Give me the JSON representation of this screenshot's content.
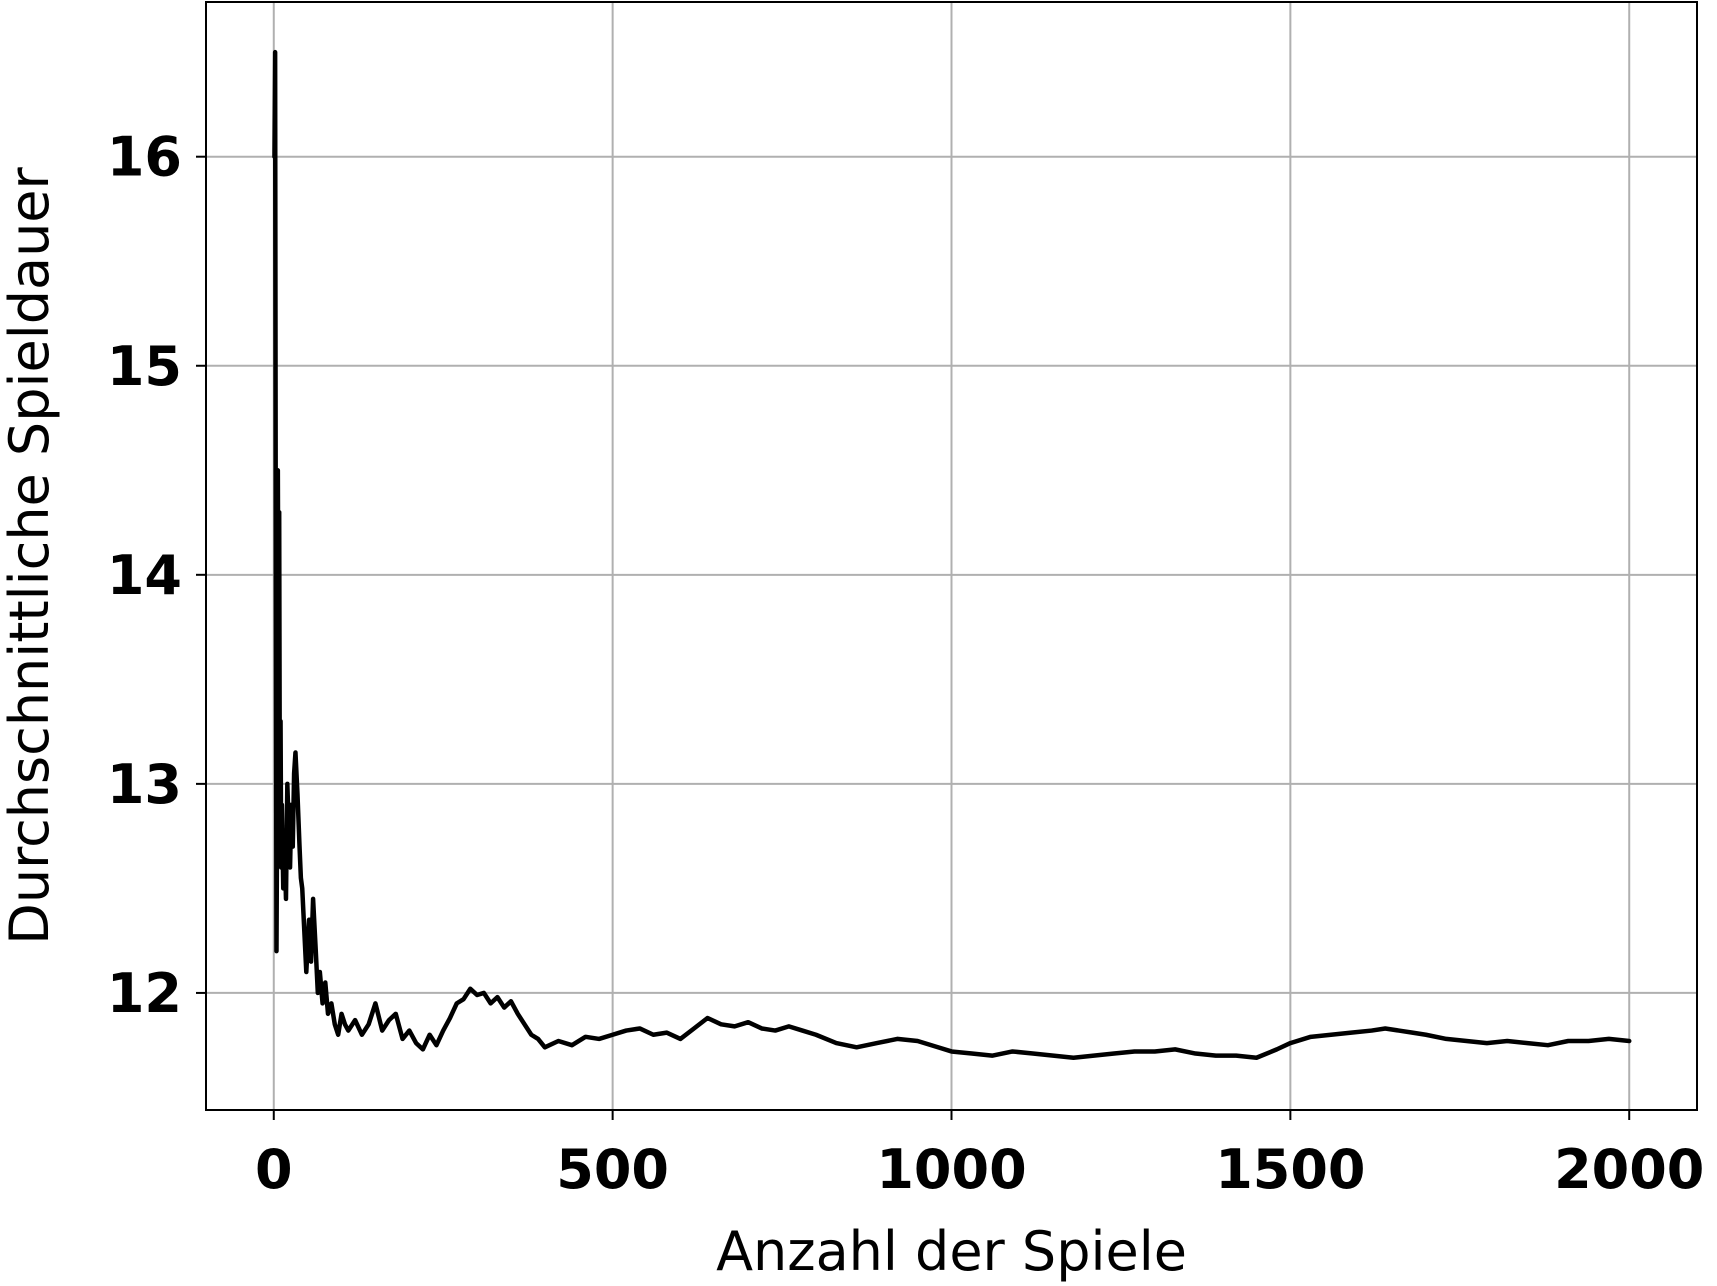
{
  "chart_data": {
    "type": "line",
    "title": "",
    "xlabel": "Anzahl der Spiele",
    "ylabel": "Durchschnittliche Spieldauer",
    "xlim": [
      -100,
      2100
    ],
    "ylim": [
      11.44,
      16.74
    ],
    "x_ticks": [
      0,
      500,
      1000,
      1500,
      2000
    ],
    "y_ticks": [
      12,
      13,
      14,
      15,
      16
    ],
    "x_tick_labels": [
      "0",
      "500",
      "1000",
      "1500",
      "2000"
    ],
    "y_tick_labels": [
      "12",
      "13",
      "14",
      "15",
      "16"
    ],
    "grid": true,
    "legend": "none",
    "colors": {
      "line": "#000000",
      "grid": "#b0b0b0",
      "axes": "#000000"
    },
    "series": [
      {
        "color": "#000000",
        "x": [
          1,
          2,
          3,
          4,
          5,
          6,
          7,
          8,
          9,
          10,
          11,
          12,
          14,
          16,
          18,
          20,
          22,
          24,
          26,
          28,
          30,
          32,
          35,
          38,
          40,
          42,
          45,
          48,
          52,
          55,
          58,
          62,
          65,
          68,
          72,
          76,
          80,
          85,
          90,
          95,
          100,
          105,
          110,
          120,
          130,
          140,
          150,
          160,
          170,
          180,
          190,
          200,
          210,
          220,
          230,
          240,
          250,
          260,
          270,
          280,
          290,
          300,
          310,
          320,
          330,
          340,
          350,
          360,
          370,
          380,
          390,
          400,
          420,
          440,
          460,
          480,
          500,
          520,
          540,
          560,
          580,
          600,
          620,
          640,
          660,
          680,
          700,
          720,
          740,
          760,
          780,
          800,
          830,
          860,
          890,
          920,
          950,
          980,
          1000,
          1030,
          1060,
          1090,
          1120,
          1150,
          1180,
          1210,
          1240,
          1270,
          1300,
          1330,
          1360,
          1390,
          1420,
          1450,
          1480,
          1500,
          1530,
          1560,
          1590,
          1620,
          1640,
          1660,
          1680,
          1700,
          1730,
          1760,
          1790,
          1820,
          1850,
          1880,
          1910,
          1940,
          1970,
          2000
        ],
        "y": [
          16.0,
          16.5,
          14.0,
          12.2,
          12.9,
          14.5,
          13.6,
          14.3,
          12.8,
          13.3,
          12.6,
          12.9,
          12.5,
          12.7,
          12.45,
          13.0,
          12.8,
          12.6,
          12.9,
          12.7,
          13.05,
          13.15,
          12.95,
          12.7,
          12.55,
          12.5,
          12.3,
          12.1,
          12.35,
          12.15,
          12.45,
          12.2,
          12.0,
          12.1,
          11.95,
          12.05,
          11.9,
          11.95,
          11.85,
          11.8,
          11.9,
          11.85,
          11.82,
          11.87,
          11.8,
          11.85,
          11.95,
          11.82,
          11.87,
          11.9,
          11.78,
          11.82,
          11.76,
          11.73,
          11.8,
          11.75,
          11.82,
          11.88,
          11.95,
          11.97,
          12.02,
          11.99,
          12.0,
          11.95,
          11.98,
          11.93,
          11.96,
          11.9,
          11.85,
          11.8,
          11.78,
          11.74,
          11.77,
          11.75,
          11.79,
          11.78,
          11.8,
          11.82,
          11.83,
          11.8,
          11.81,
          11.78,
          11.83,
          11.88,
          11.85,
          11.84,
          11.86,
          11.83,
          11.82,
          11.84,
          11.82,
          11.8,
          11.76,
          11.74,
          11.76,
          11.78,
          11.77,
          11.74,
          11.72,
          11.71,
          11.7,
          11.72,
          11.71,
          11.7,
          11.69,
          11.7,
          11.71,
          11.72,
          11.72,
          11.73,
          11.71,
          11.7,
          11.7,
          11.69,
          11.73,
          11.76,
          11.79,
          11.8,
          11.81,
          11.82,
          11.83,
          11.82,
          11.81,
          11.8,
          11.78,
          11.77,
          11.76,
          11.77,
          11.76,
          11.75,
          11.77,
          11.77,
          11.78,
          11.77
        ]
      }
    ]
  }
}
